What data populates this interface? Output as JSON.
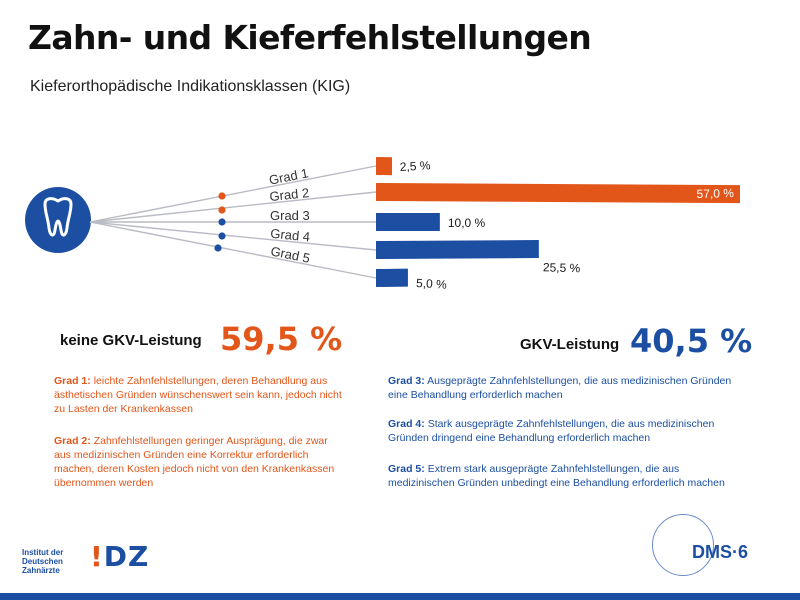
{
  "title": "Zahn- und Kieferfehlstellungen",
  "subtitle": "Kieferorthopädische Indikationsklassen (KIG)",
  "chart_data": {
    "type": "bar",
    "categories": [
      "Grad 1",
      "Grad 2",
      "Grad 3",
      "Grad 4",
      "Grad 5"
    ],
    "values": [
      2.5,
      57.0,
      10.0,
      25.5,
      5.0
    ],
    "value_labels": [
      "2,5 %",
      "57,0 %",
      "10,0 %",
      "25,5 %",
      "5,0 %"
    ],
    "unit": "%",
    "colors": [
      "#e2561a",
      "#e2561a",
      "#1c4fa1",
      "#1c4fa1",
      "#1c4fa1"
    ],
    "icon": "tooth-icon"
  },
  "summary": {
    "left": {
      "label": "keine GKV-Leistung",
      "value": "59,5 %",
      "color": "#e2561a"
    },
    "right": {
      "label": "GKV-Leistung",
      "value": "40,5 %",
      "color": "#1c4fa1"
    }
  },
  "descriptions": [
    {
      "grade": "Grad 1:",
      "text": "leichte Zahnfehlstellungen, deren Behandlung aus ästhetischen Gründen wünschenswert sein kann, jedoch nicht zu Lasten der Krankenkassen",
      "color": "#e2561a"
    },
    {
      "grade": "Grad 2:",
      "text": "Zahnfehlstellungen geringer Ausprägung, die zwar aus medizinischen Gründen eine Korrektur erforderlich machen, deren Kosten jedoch nicht von den Krankenkassen übernommen werden",
      "color": "#e2561a"
    },
    {
      "grade": "Grad 3:",
      "text": "Ausgeprägte Zahnfehlstellungen, die aus medizinischen Gründen eine Behandlung erforderlich machen",
      "color": "#1c4fa1"
    },
    {
      "grade": "Grad 4:",
      "text": "Stark ausgeprägte Zahnfehlstellungen, die aus medizinischen Gründen dringend eine Behandlung erforderlich machen",
      "color": "#1c4fa1"
    },
    {
      "grade": "Grad 5:",
      "text": "Extrem stark ausgeprägte Zahnfehlstellungen, die aus medizinischen  Gründen unbedingt eine Behandlung erforderlich machen",
      "color": "#1c4fa1"
    }
  ],
  "footer": {
    "idz_text": "Institut der Deutschen Zahnärzte",
    "idz_logo_mark": "!",
    "idz_logo_letters": "DZ",
    "dms_logo": "DMS·6"
  }
}
